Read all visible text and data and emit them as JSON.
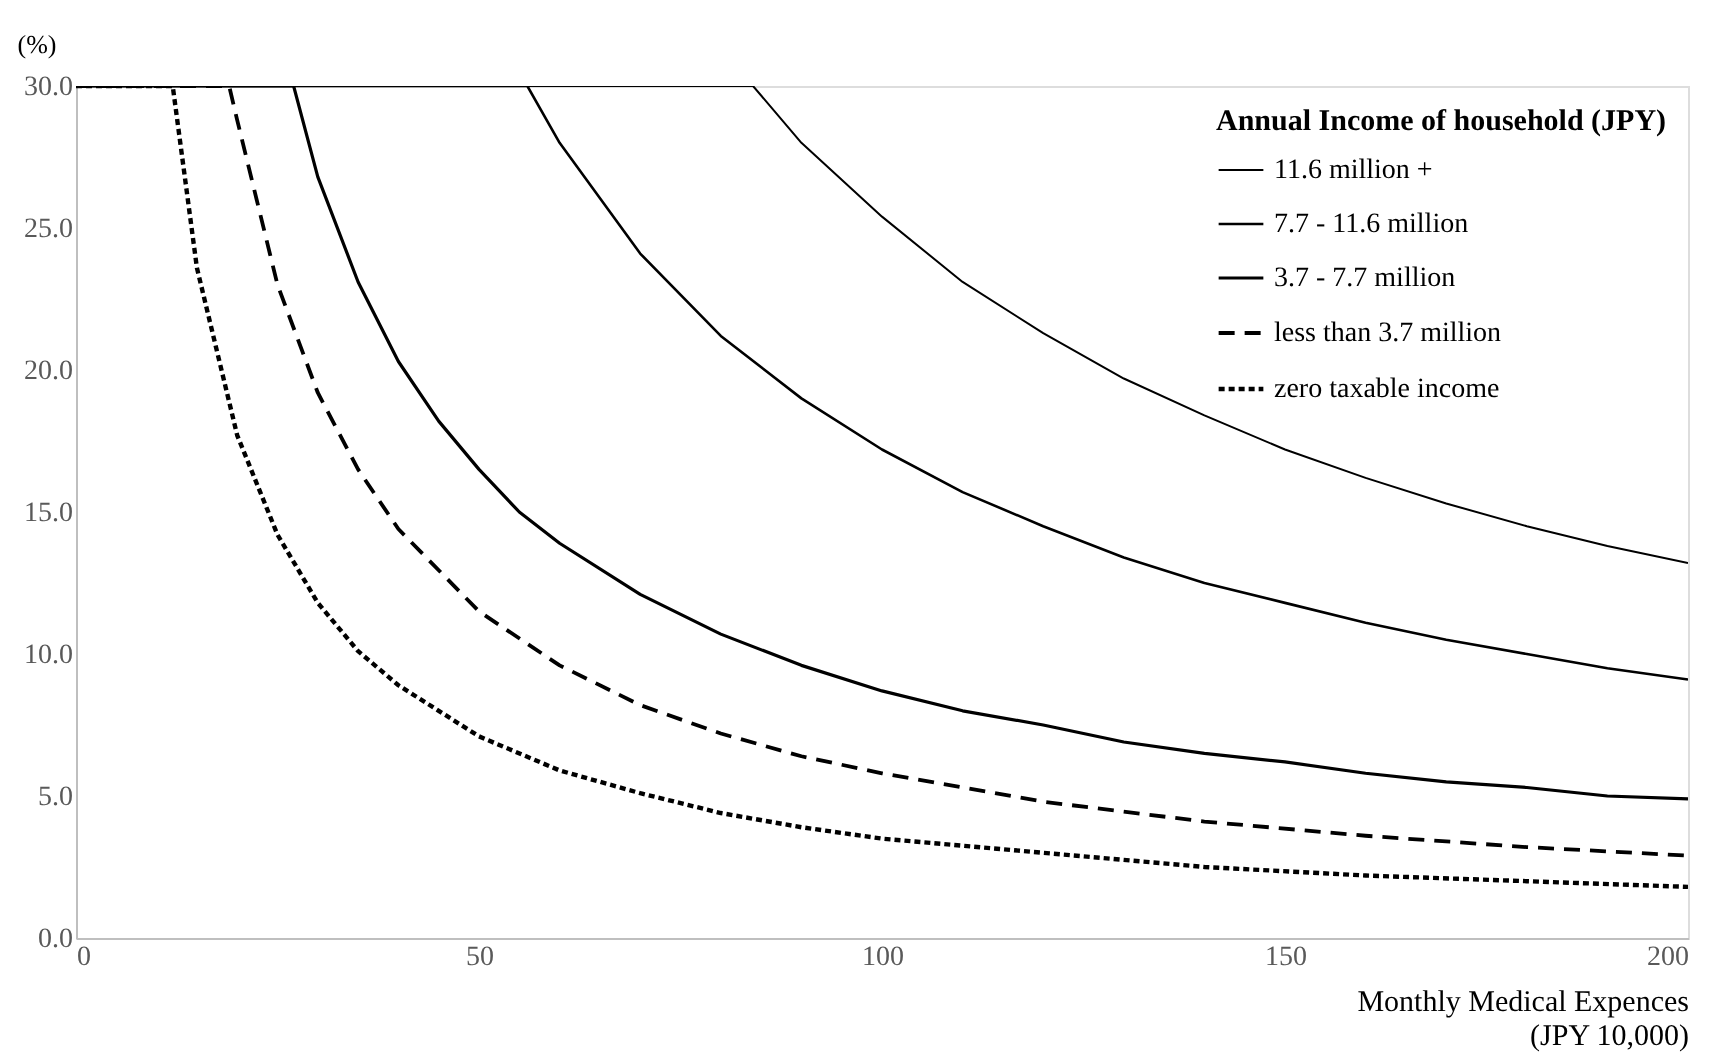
{
  "chart_data": {
    "type": "line",
    "xlabel": "Monthly Medical Expences\n(JPY 10,000)",
    "ylabel": "(%)",
    "legend_title": "Annual Income of household (JPY)",
    "legend": "top right",
    "grid": false,
    "marker": "none",
    "xlim": [
      0,
      200
    ],
    "xticks": [
      0,
      50,
      100,
      150,
      200
    ],
    "ylim": [
      0,
      30
    ],
    "yticks": [
      {
        "value": 0,
        "label": "0.0"
      },
      {
        "value": 5,
        "label": "5.0"
      },
      {
        "value": 10,
        "label": "10.0"
      },
      {
        "value": 15,
        "label": "15.0"
      },
      {
        "value": 20,
        "label": "20.0"
      },
      {
        "value": 25,
        "label": "25.0"
      },
      {
        "value": 30,
        "label": "30.0"
      }
    ],
    "series": [
      {
        "name": "11.6 million +",
        "color": "#000000",
        "line_style": "solid",
        "x": [
          0,
          84,
          90,
          100,
          110,
          120,
          130,
          140,
          150,
          160,
          170,
          180,
          190,
          200
        ],
        "values": [
          30,
          30,
          28.0,
          25.4,
          23.1,
          21.3,
          19.7,
          18.4,
          17.2,
          16.2,
          15.3,
          14.5,
          13.8,
          13.2
        ]
      },
      {
        "name": "7.7 - 11.6 million",
        "color": "#000000",
        "line_style": "solid",
        "x": [
          0,
          56,
          60,
          70,
          80,
          90,
          100,
          110,
          120,
          130,
          140,
          150,
          160,
          170,
          180,
          190,
          200
        ],
        "values": [
          30,
          30,
          28.0,
          24.1,
          21.2,
          19.0,
          17.2,
          15.7,
          14.5,
          13.4,
          12.5,
          11.8,
          11.1,
          10.5,
          10.0,
          9.5,
          9.1
        ]
      },
      {
        "name": "3.7 - 7.7 million",
        "color": "#000000",
        "line_style": "solid",
        "x": [
          0,
          27,
          30,
          35,
          40,
          45,
          50,
          55,
          60,
          70,
          80,
          90,
          100,
          110,
          120,
          130,
          140,
          150,
          160,
          170,
          180,
          190,
          200
        ],
        "values": [
          30,
          30,
          26.8,
          23.1,
          20.3,
          18.2,
          16.5,
          15.0,
          13.9,
          12.1,
          10.7,
          9.6,
          8.7,
          8.0,
          7.5,
          6.9,
          6.5,
          6.2,
          5.8,
          5.5,
          5.3,
          5.0,
          4.9
        ]
      },
      {
        "name": "less than 3.7 million",
        "color": "#000000",
        "line_style": "dashed",
        "x": [
          0,
          19,
          20,
          25,
          30,
          35,
          40,
          50,
          60,
          70,
          80,
          90,
          100,
          120,
          140,
          160,
          180,
          200
        ],
        "values": [
          30,
          30,
          28.8,
          23.0,
          19.2,
          16.5,
          14.4,
          11.5,
          9.6,
          8.2,
          7.2,
          6.4,
          5.8,
          4.8,
          4.1,
          3.6,
          3.2,
          2.9
        ]
      },
      {
        "name": "zero taxable income",
        "color": "#000000",
        "line_style": "dotted",
        "x": [
          0,
          12,
          15,
          20,
          25,
          30,
          35,
          40,
          50,
          60,
          70,
          80,
          90,
          100,
          120,
          140,
          160,
          180,
          200
        ],
        "values": [
          30,
          30,
          23.6,
          17.7,
          14.2,
          11.8,
          10.1,
          8.9,
          7.1,
          5.9,
          5.1,
          4.4,
          3.9,
          3.5,
          3.0,
          2.5,
          2.2,
          2.0,
          1.8
        ]
      }
    ]
  }
}
